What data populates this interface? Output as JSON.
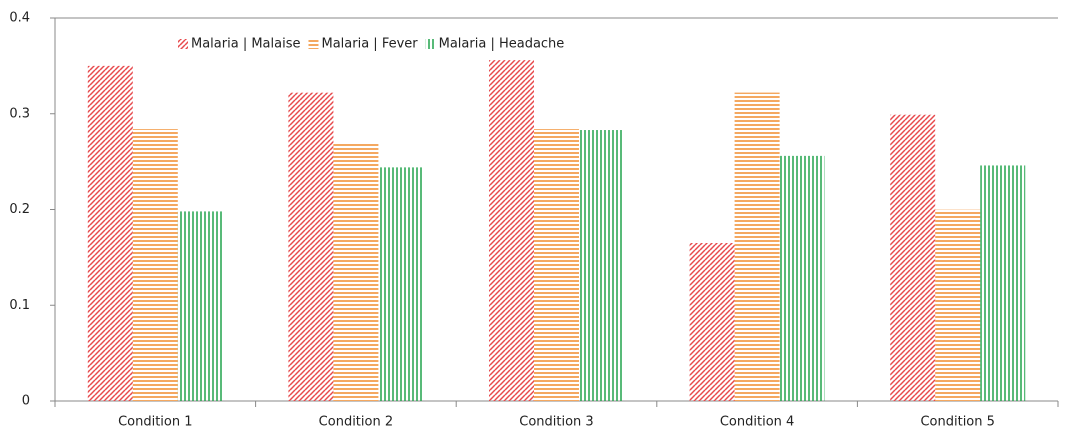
{
  "chart_data": {
    "type": "bar",
    "categories": [
      "Condition 1",
      "Condition 2",
      "Condition 3",
      "Condition 4",
      "Condition 5"
    ],
    "series": [
      {
        "name": "Malaria | Malaise",
        "color": "#e8494c",
        "hatch": "diagonal",
        "values": [
          0.35,
          0.322,
          0.356,
          0.165,
          0.299
        ]
      },
      {
        "name": "Malaria | Fever",
        "color": "#f08a2a",
        "hatch": "horizontal",
        "values": [
          0.284,
          0.27,
          0.284,
          0.322,
          0.2
        ]
      },
      {
        "name": "Malaria | Headache",
        "color": "#1fa34a",
        "hatch": "vertical",
        "values": [
          0.198,
          0.244,
          0.283,
          0.256,
          0.246
        ]
      }
    ],
    "ylim": [
      0,
      0.4
    ],
    "yticks": [
      0,
      0.1,
      0.2,
      0.3,
      0.4
    ],
    "grid": false,
    "legend": "top"
  }
}
